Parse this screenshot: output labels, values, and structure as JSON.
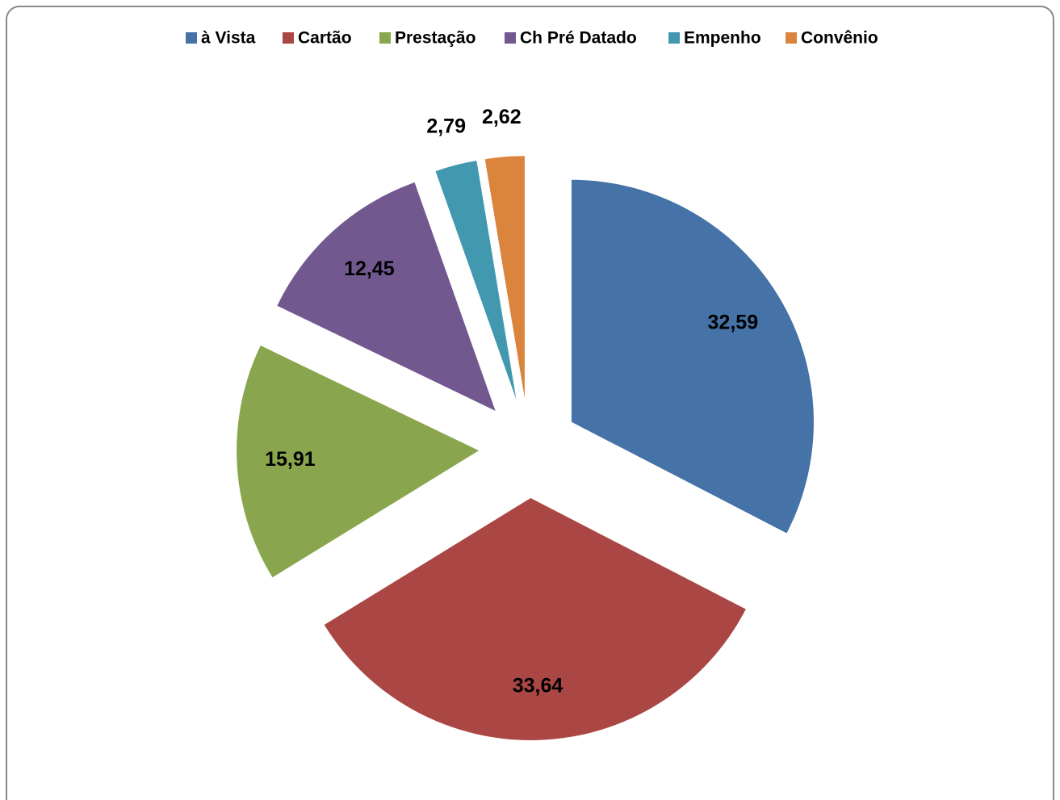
{
  "chart_data": {
    "type": "pie",
    "categories": [
      "à Vista",
      "Cartão",
      "Prestação",
      "Ch Pré Datado",
      "Empenho",
      "Convênio"
    ],
    "values": [
      32.59,
      33.64,
      15.91,
      12.45,
      2.79,
      2.62
    ],
    "value_labels": [
      "32,59",
      "33,64",
      "15,91",
      "12,45",
      "2,79",
      "2,62"
    ],
    "colors": [
      "#4572a7",
      "#aa4643",
      "#89a54e",
      "#71588f",
      "#4198af",
      "#db843d"
    ],
    "legend": "top"
  }
}
